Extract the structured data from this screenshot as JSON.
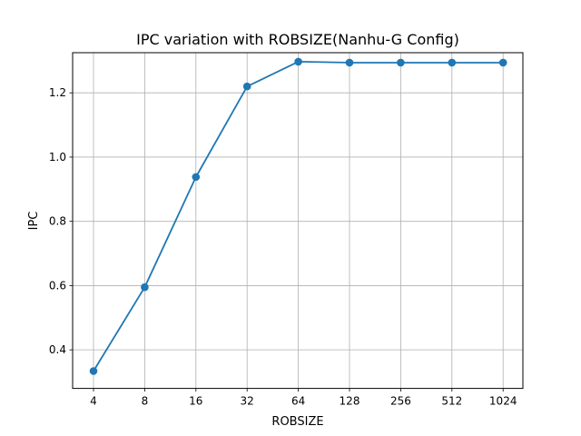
{
  "chart_data": {
    "type": "line",
    "title": "IPC variation with ROBSIZE(Nanhu-G Config)",
    "xlabel": "ROBSIZE",
    "ylabel": "IPC",
    "categories": [
      "4",
      "8",
      "16",
      "32",
      "64",
      "128",
      "256",
      "512",
      "1024"
    ],
    "series": [
      {
        "values": [
          0.334,
          0.595,
          0.938,
          1.22,
          1.297,
          1.294,
          1.294,
          1.294,
          1.294
        ],
        "color": "#1f77b4",
        "marker": "circle"
      }
    ],
    "ylim": [
      0.28,
      1.325
    ],
    "yticks": [
      0.4,
      0.6,
      0.8,
      1.0,
      1.2
    ],
    "ytick_labels": [
      "0.4",
      "0.6",
      "0.8",
      "1.0",
      "1.2"
    ],
    "grid": true,
    "grid_color": "#b0b0b0"
  }
}
